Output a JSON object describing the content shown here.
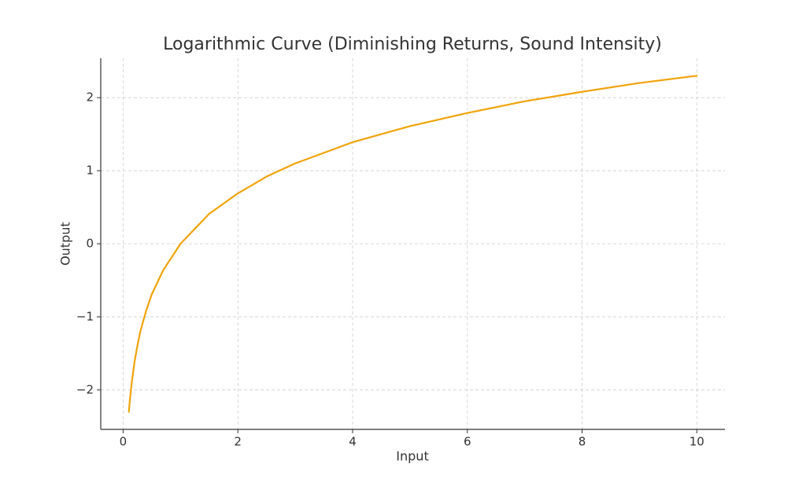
{
  "chart_data": {
    "type": "line",
    "title": "Logarithmic Curve (Diminishing Returns, Sound Intensity)",
    "x_label": "Input",
    "y_label": "Output",
    "x": [
      0.1,
      0.12,
      0.15,
      0.2,
      0.25,
      0.3,
      0.4,
      0.5,
      0.7,
      1,
      1.5,
      2,
      2.5,
      3,
      4,
      5,
      6,
      7,
      8,
      9,
      10
    ],
    "values": [
      -2.3,
      -2.12,
      -1.9,
      -1.61,
      -1.39,
      -1.2,
      -0.92,
      -0.69,
      -0.36,
      0,
      0.41,
      0.69,
      0.92,
      1.1,
      1.39,
      1.61,
      1.79,
      1.95,
      2.08,
      2.2,
      2.3
    ],
    "color": "#f0a30a",
    "xlim": [
      -0.39,
      10.49
    ],
    "ylim": [
      -2.54,
      2.54
    ],
    "xticks": [
      0,
      2,
      4,
      6,
      8,
      10
    ],
    "yticks": [
      {
        "value": -2,
        "label": "−2"
      },
      {
        "value": -1,
        "label": "−1"
      },
      0,
      1,
      2
    ],
    "grid": true
  }
}
